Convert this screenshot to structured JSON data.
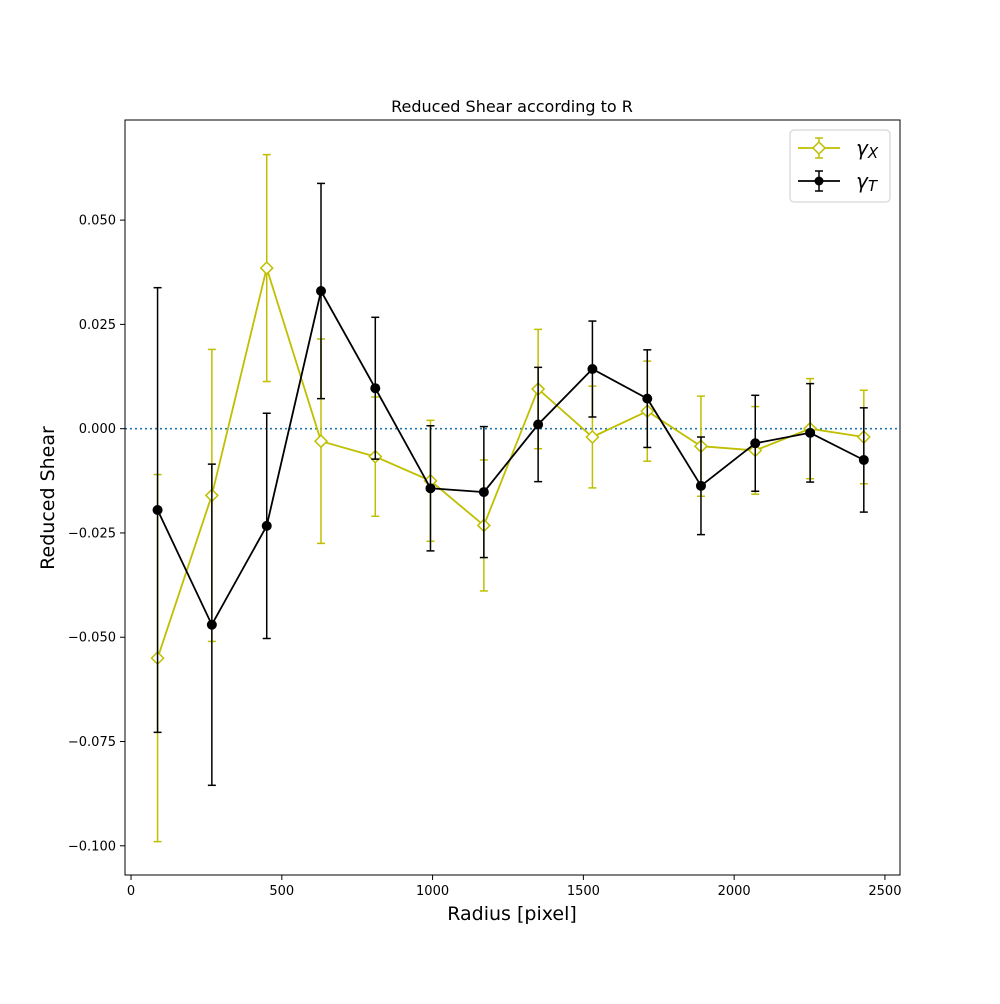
{
  "chart_data": {
    "type": "scatter",
    "title": "Reduced Shear according to R",
    "xlabel": "Radius [pixel]",
    "ylabel": "Reduced Shear",
    "xlim": [
      -20,
      2550
    ],
    "ylim": [
      -0.107,
      0.074
    ],
    "xticks": [
      0,
      500,
      1000,
      1500,
      2000,
      2500
    ],
    "xtick_labels": [
      "0",
      "500",
      "1000",
      "1500",
      "2000",
      "2500"
    ],
    "yticks": [
      -0.1,
      -0.075,
      -0.05,
      -0.025,
      0.0,
      0.025,
      0.05
    ],
    "ytick_labels": [
      "−0.100",
      "−0.075",
      "−0.050",
      "−0.025",
      "0.000",
      "0.025",
      "0.050"
    ],
    "reference_line": {
      "y": 0.0,
      "style": "dotted",
      "color": "#1f77b4"
    },
    "legend": {
      "placement": "upper right"
    },
    "grid": false,
    "series": [
      {
        "name": "γX",
        "legend_main": "γ",
        "legend_sub": "X",
        "color": "#bfbf00",
        "marker": "diamond-open",
        "x": [
          88,
          268,
          450,
          630,
          810,
          993,
          1170,
          1350,
          1530,
          1712,
          1890,
          2070,
          2252,
          2430
        ],
        "y": [
          -0.055,
          -0.016,
          0.0385,
          -0.003,
          -0.0067,
          -0.0125,
          -0.0232,
          0.0095,
          -0.002,
          0.0042,
          -0.0042,
          -0.0052,
          0.0,
          -0.002
        ],
        "err": [
          0.044,
          0.035,
          0.0272,
          0.0245,
          0.0143,
          0.0145,
          0.0157,
          0.0143,
          0.0122,
          0.012,
          0.012,
          0.0105,
          0.012,
          0.0112
        ]
      },
      {
        "name": "γT",
        "legend_main": "γ",
        "legend_sub": "T",
        "color": "#000000",
        "marker": "circle-filled",
        "x": [
          88,
          268,
          450,
          630,
          810,
          993,
          1170,
          1350,
          1530,
          1712,
          1890,
          2070,
          2252,
          2430
        ],
        "y": [
          -0.0195,
          -0.047,
          -0.0233,
          0.033,
          0.0097,
          -0.0143,
          -0.0152,
          0.001,
          0.0143,
          0.0072,
          -0.0137,
          -0.0035,
          -0.001,
          -0.0075
        ],
        "err": [
          0.0533,
          0.0385,
          0.027,
          0.0258,
          0.017,
          0.015,
          0.0157,
          0.0137,
          0.0115,
          0.0117,
          0.0117,
          0.0115,
          0.0118,
          0.0125
        ]
      }
    ]
  }
}
